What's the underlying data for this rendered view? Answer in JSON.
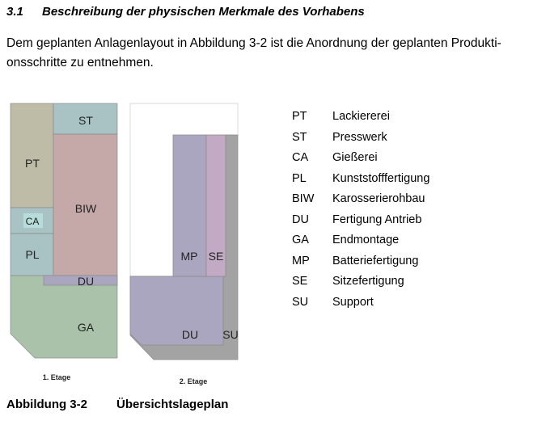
{
  "section": {
    "number": "3.1",
    "title": "Beschreibung der physischen Merkmale des Vorhabens"
  },
  "paragraph": {
    "line1": "Dem geplanten Anlagenlayout in Abbildung 3-2 ist die Anordnung der geplanten Produkti-",
    "line2": "onsschritte zu entnehmen."
  },
  "floor1": {
    "label": "1. Etage",
    "zones": {
      "st": "ST",
      "pt": "PT",
      "ca": "CA",
      "pl": "PL",
      "biw": "BIW",
      "du": "DU",
      "ga": "GA"
    }
  },
  "floor2": {
    "label": "2. Etage",
    "zones": {
      "mp": "MP",
      "se": "SE",
      "du": "DU",
      "su": "SU"
    }
  },
  "legend": [
    {
      "abbr": "PT",
      "name": "Lackiererei"
    },
    {
      "abbr": "ST",
      "name": "Presswerk"
    },
    {
      "abbr": "CA",
      "name": "Gießerei"
    },
    {
      "abbr": "PL",
      "name": "Kunststofffertigung"
    },
    {
      "abbr": "BIW",
      "name": "Karosserierohbau"
    },
    {
      "abbr": "DU",
      "name": "Fertigung Antrieb"
    },
    {
      "abbr": "GA",
      "name": "Endmontage"
    },
    {
      "abbr": "MP",
      "name": "Batteriefertigung"
    },
    {
      "abbr": "SE",
      "name": "Sitzefertigung"
    },
    {
      "abbr": "SU",
      "name": "Support"
    }
  ],
  "caption": {
    "number": "Abbildung 3-2",
    "title": "Übersichtslageplan"
  },
  "colors": {
    "pt": "#bebca6",
    "st": "#a9c2c4",
    "biw": "#c4a9a8",
    "ca": "#a9c2c4",
    "ga": "#a9c2a9",
    "du": "#aba6c0",
    "se": "#c2a9c4",
    "su": "#a3a3a3"
  }
}
